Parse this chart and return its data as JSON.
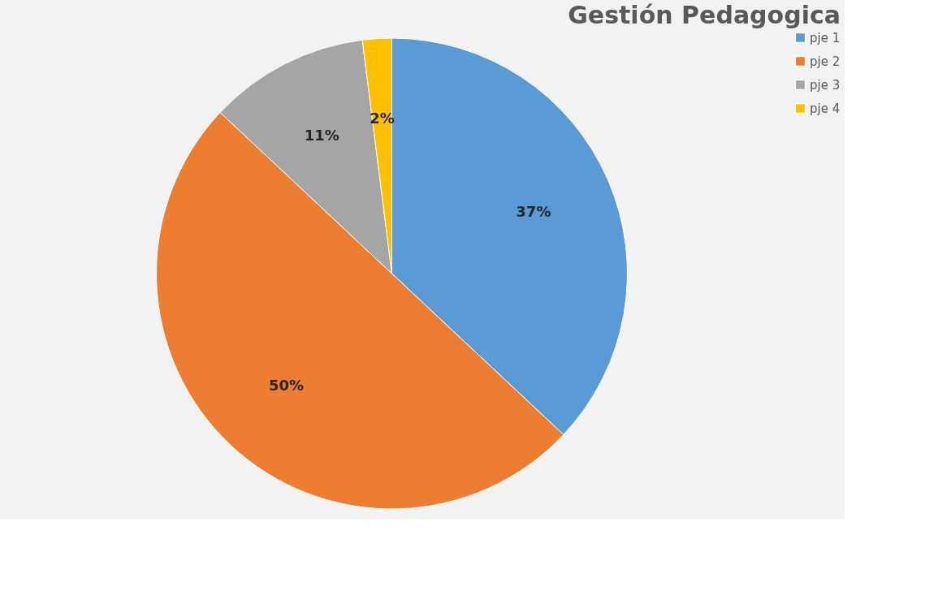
{
  "chart_data": {
    "type": "pie",
    "title": "Gestión Pedagogica",
    "categories": [
      "pje 1",
      "pje 2",
      "pje 3",
      "pje 4"
    ],
    "values": [
      37,
      50,
      11,
      2
    ],
    "colors": [
      "#5b9bd5",
      "#ed7d31",
      "#a5a5a5",
      "#ffc000"
    ],
    "value_labels": [
      "37%",
      "50%",
      "11%",
      "2%"
    ],
    "legend": "right"
  }
}
